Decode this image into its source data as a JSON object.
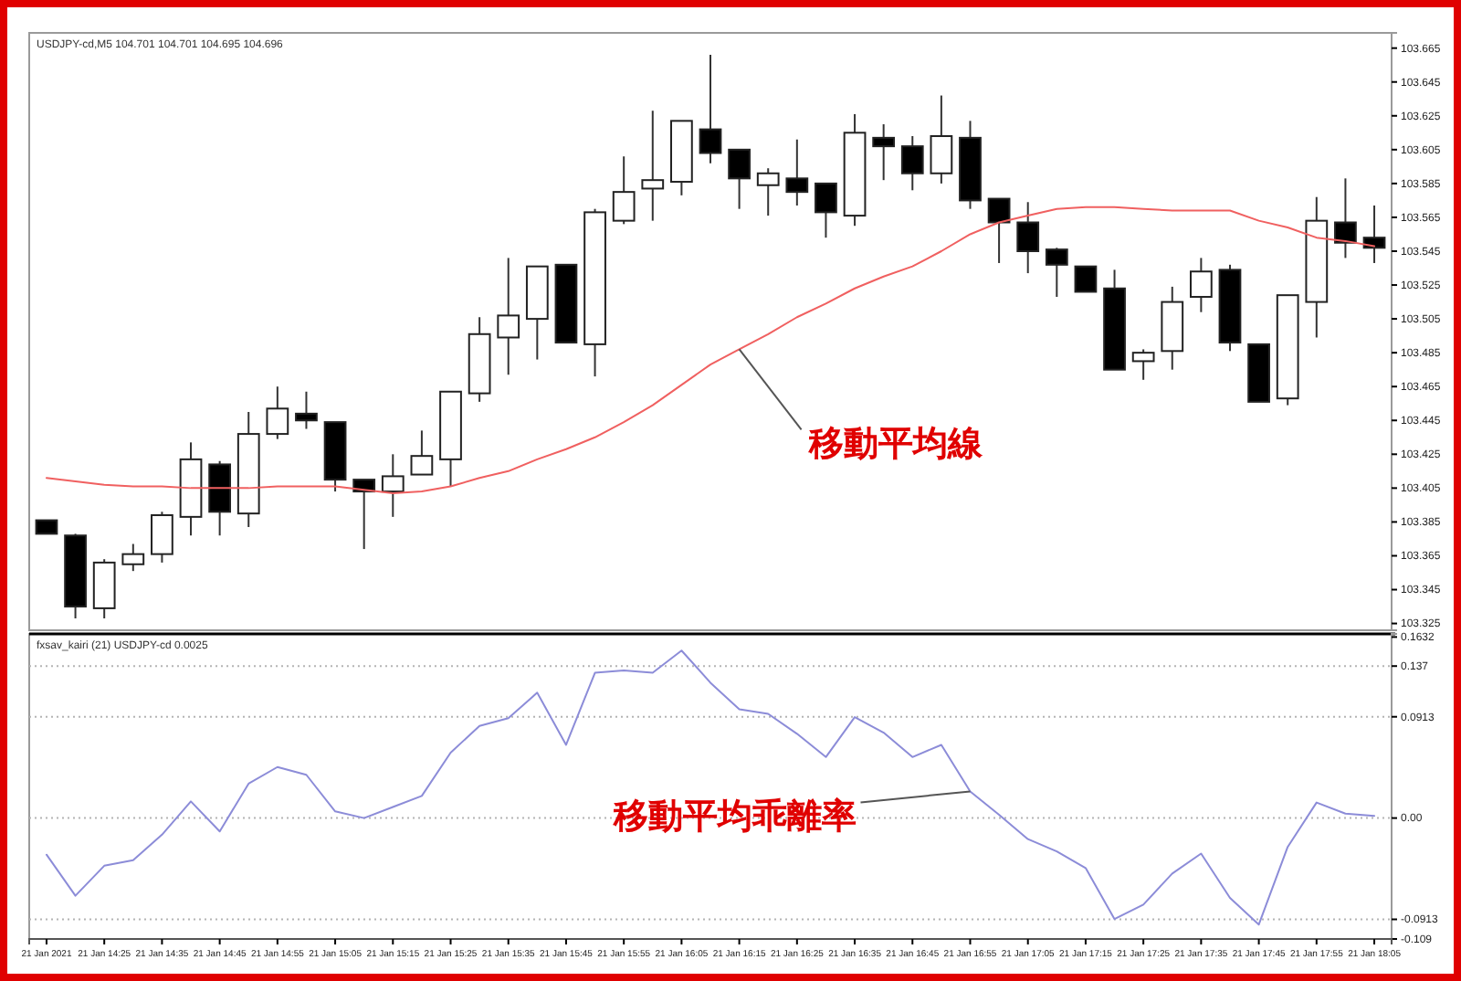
{
  "chart_data": [
    {
      "type": "candlestick",
      "title": "USDJPY-cd,M5  104.701 104.701 104.695 104.696",
      "x": [
        "2021-01-21T14:15",
        "2021-01-21T14:20",
        "2021-01-21T14:25",
        "2021-01-21T14:30",
        "2021-01-21T14:35",
        "2021-01-21T14:40",
        "2021-01-21T14:45",
        "2021-01-21T14:50",
        "2021-01-21T14:55",
        "2021-01-21T15:00",
        "2021-01-21T15:05",
        "2021-01-21T15:10",
        "2021-01-21T15:15",
        "2021-01-21T15:20",
        "2021-01-21T15:25",
        "2021-01-21T15:30",
        "2021-01-21T15:35",
        "2021-01-21T15:40",
        "2021-01-21T15:45",
        "2021-01-21T15:50",
        "2021-01-21T15:55",
        "2021-01-21T16:00",
        "2021-01-21T16:05",
        "2021-01-21T16:10",
        "2021-01-21T16:15",
        "2021-01-21T16:20",
        "2021-01-21T16:25",
        "2021-01-21T16:30",
        "2021-01-21T16:35",
        "2021-01-21T16:40",
        "2021-01-21T16:45",
        "2021-01-21T16:50",
        "2021-01-21T16:55",
        "2021-01-21T17:00",
        "2021-01-21T17:05",
        "2021-01-21T17:10",
        "2021-01-21T17:15",
        "2021-01-21T17:20",
        "2021-01-21T17:25",
        "2021-01-21T17:30",
        "2021-01-21T17:35",
        "2021-01-21T17:40",
        "2021-01-21T17:45",
        "2021-01-21T17:50",
        "2021-01-21T17:55",
        "2021-01-21T18:00",
        "2021-01-21T18:05"
      ],
      "ohlc": [
        [
          103.386,
          103.386,
          103.378,
          103.378
        ],
        [
          103.377,
          103.378,
          103.328,
          103.335
        ],
        [
          103.334,
          103.363,
          103.328,
          103.361
        ],
        [
          103.36,
          103.372,
          103.356,
          103.366
        ],
        [
          103.366,
          103.391,
          103.361,
          103.389
        ],
        [
          103.388,
          103.432,
          103.377,
          103.422
        ],
        [
          103.419,
          103.421,
          103.377,
          103.391
        ],
        [
          103.39,
          103.45,
          103.382,
          103.437
        ],
        [
          103.437,
          103.465,
          103.434,
          103.452
        ],
        [
          103.449,
          103.462,
          103.44,
          103.445
        ],
        [
          103.444,
          103.444,
          103.403,
          103.41
        ],
        [
          103.41,
          103.41,
          103.369,
          103.403
        ],
        [
          103.403,
          103.425,
          103.388,
          103.412
        ],
        [
          103.413,
          103.439,
          103.413,
          103.424
        ],
        [
          103.422,
          103.462,
          103.406,
          103.462
        ],
        [
          103.461,
          103.506,
          103.456,
          103.496
        ],
        [
          103.494,
          103.541,
          103.472,
          103.507
        ],
        [
          103.505,
          103.536,
          103.481,
          103.536
        ],
        [
          103.537,
          103.537,
          103.491,
          103.491
        ],
        [
          103.49,
          103.57,
          103.471,
          103.568
        ],
        [
          103.563,
          103.601,
          103.561,
          103.58
        ],
        [
          103.582,
          103.628,
          103.563,
          103.587
        ],
        [
          103.586,
          103.622,
          103.578,
          103.622
        ],
        [
          103.617,
          103.661,
          103.597,
          103.603
        ],
        [
          103.605,
          103.605,
          103.57,
          103.588
        ],
        [
          103.584,
          103.594,
          103.566,
          103.591
        ],
        [
          103.588,
          103.611,
          103.572,
          103.58
        ],
        [
          103.585,
          103.585,
          103.553,
          103.568
        ],
        [
          103.566,
          103.626,
          103.56,
          103.615
        ],
        [
          103.612,
          103.62,
          103.587,
          103.607
        ],
        [
          103.607,
          103.613,
          103.581,
          103.591
        ],
        [
          103.591,
          103.637,
          103.585,
          103.613
        ],
        [
          103.612,
          103.622,
          103.57,
          103.575
        ],
        [
          103.576,
          103.576,
          103.538,
          103.562
        ],
        [
          103.562,
          103.574,
          103.532,
          103.545
        ],
        [
          103.546,
          103.547,
          103.518,
          103.537
        ],
        [
          103.536,
          103.536,
          103.521,
          103.521
        ],
        [
          103.523,
          103.534,
          103.475,
          103.475
        ],
        [
          103.48,
          103.487,
          103.469,
          103.485
        ],
        [
          103.486,
          103.524,
          103.475,
          103.515
        ],
        [
          103.518,
          103.541,
          103.509,
          103.533
        ],
        [
          103.534,
          103.537,
          103.486,
          103.491
        ],
        [
          103.49,
          103.49,
          103.456,
          103.456
        ],
        [
          103.458,
          103.519,
          103.454,
          103.519
        ],
        [
          103.515,
          103.577,
          103.494,
          103.563
        ],
        [
          103.562,
          103.588,
          103.541,
          103.55
        ],
        [
          103.553,
          103.572,
          103.538,
          103.547
        ]
      ],
      "series": [
        {
          "type": "line",
          "color": "#f06060",
          "values": [
            103.411,
            103.409,
            103.407,
            103.406,
            103.406,
            103.405,
            103.405,
            103.405,
            103.406,
            103.406,
            103.406,
            103.404,
            103.402,
            103.403,
            103.406,
            103.411,
            103.415,
            103.422,
            103.428,
            103.435,
            103.444,
            103.454,
            103.466,
            103.478,
            103.487,
            103.496,
            103.506,
            103.514,
            103.523,
            103.53,
            103.536,
            103.545,
            103.555,
            103.562,
            103.566,
            103.57,
            103.571,
            103.571,
            103.57,
            103.569,
            103.569,
            103.569,
            103.563,
            103.559,
            103.553,
            103.551,
            103.548
          ]
        }
      ],
      "xlim": [
        "2021-01-21T14:12",
        "2021-01-21T18:08"
      ],
      "ylim": [
        103.321,
        103.674
      ],
      "yticks": [
        103.665,
        103.645,
        103.625,
        103.605,
        103.585,
        103.565,
        103.545,
        103.525,
        103.505,
        103.485,
        103.465,
        103.445,
        103.425,
        103.405,
        103.385,
        103.365,
        103.345,
        103.325
      ],
      "tick_labels": "y",
      "annotations": [
        {
          "text": "移動平均線",
          "x": "2021-01-21T16:15",
          "y": 103.487
        }
      ]
    },
    {
      "type": "line",
      "title": "fxsav_kairi (21) USDJPY-cd 0.0025",
      "x": [
        "2021-01-21T14:15",
        "2021-01-21T14:20",
        "2021-01-21T14:25",
        "2021-01-21T14:30",
        "2021-01-21T14:35",
        "2021-01-21T14:40",
        "2021-01-21T14:45",
        "2021-01-21T14:50",
        "2021-01-21T14:55",
        "2021-01-21T15:00",
        "2021-01-21T15:05",
        "2021-01-21T15:10",
        "2021-01-21T15:15",
        "2021-01-21T15:20",
        "2021-01-21T15:25",
        "2021-01-21T15:30",
        "2021-01-21T15:35",
        "2021-01-21T15:40",
        "2021-01-21T15:45",
        "2021-01-21T15:50",
        "2021-01-21T15:55",
        "2021-01-21T16:00",
        "2021-01-21T16:05",
        "2021-01-21T16:10",
        "2021-01-21T16:15",
        "2021-01-21T16:20",
        "2021-01-21T16:25",
        "2021-01-21T16:30",
        "2021-01-21T16:35",
        "2021-01-21T16:40",
        "2021-01-21T16:45",
        "2021-01-21T16:50",
        "2021-01-21T16:55",
        "2021-01-21T17:00",
        "2021-01-21T17:05",
        "2021-01-21T17:10",
        "2021-01-21T17:15",
        "2021-01-21T17:20",
        "2021-01-21T17:25",
        "2021-01-21T17:30",
        "2021-01-21T17:35",
        "2021-01-21T17:40",
        "2021-01-21T17:45",
        "2021-01-21T17:50",
        "2021-01-21T17:55",
        "2021-01-21T18:00",
        "2021-01-21T18:05"
      ],
      "series": [
        {
          "color": "#8c8cd8",
          "values": [
            -0.033,
            -0.07,
            -0.043,
            -0.038,
            -0.015,
            0.015,
            -0.012,
            0.031,
            0.046,
            0.039,
            0.006,
            0.0,
            0.01,
            0.02,
            0.059,
            0.083,
            0.09,
            0.113,
            0.066,
            0.131,
            0.133,
            0.131,
            0.151,
            0.122,
            0.098,
            0.094,
            0.076,
            0.055,
            0.091,
            0.077,
            0.055,
            0.066,
            0.024,
            0.003,
            -0.019,
            -0.03,
            -0.045,
            -0.091,
            -0.078,
            -0.05,
            -0.032,
            -0.072,
            -0.096,
            -0.026,
            0.014,
            0.004,
            0.002
          ]
        }
      ],
      "xlim": [
        "2021-01-21T14:12",
        "2021-01-21T18:08"
      ],
      "xticks": [
        {
          "value": "2021-01-21T14:15",
          "label": "21 Jan 2021"
        },
        {
          "value": "2021-01-21T14:25",
          "label": "21 Jan 14:25"
        },
        {
          "value": "2021-01-21T14:35",
          "label": "21 Jan 14:35"
        },
        {
          "value": "2021-01-21T14:45",
          "label": "21 Jan 14:45"
        },
        {
          "value": "2021-01-21T14:55",
          "label": "21 Jan 14:55"
        },
        {
          "value": "2021-01-21T15:05",
          "label": "21 Jan 15:05"
        },
        {
          "value": "2021-01-21T15:15",
          "label": "21 Jan 15:15"
        },
        {
          "value": "2021-01-21T15:25",
          "label": "21 Jan 15:25"
        },
        {
          "value": "2021-01-21T15:35",
          "label": "21 Jan 15:35"
        },
        {
          "value": "2021-01-21T15:45",
          "label": "21 Jan 15:45"
        },
        {
          "value": "2021-01-21T15:55",
          "label": "21 Jan 15:55"
        },
        {
          "value": "2021-01-21T16:05",
          "label": "21 Jan 16:05"
        },
        {
          "value": "2021-01-21T16:15",
          "label": "21 Jan 16:15"
        },
        {
          "value": "2021-01-21T16:25",
          "label": "21 Jan 16:25"
        },
        {
          "value": "2021-01-21T16:35",
          "label": "21 Jan 16:35"
        },
        {
          "value": "2021-01-21T16:45",
          "label": "21 Jan 16:45"
        },
        {
          "value": "2021-01-21T16:55",
          "label": "21 Jan 16:55"
        },
        {
          "value": "2021-01-21T17:05",
          "label": "21 Jan 17:05"
        },
        {
          "value": "2021-01-21T17:15",
          "label": "21 Jan 17:15"
        },
        {
          "value": "2021-01-21T17:25",
          "label": "21 Jan 17:25"
        },
        {
          "value": "2021-01-21T17:35",
          "label": "21 Jan 17:35"
        },
        {
          "value": "2021-01-21T17:45",
          "label": "21 Jan 17:45"
        },
        {
          "value": "2021-01-21T17:55",
          "label": "21 Jan 17:55"
        },
        {
          "value": "2021-01-21T18:05",
          "label": "21 Jan 18:05"
        }
      ],
      "ylim": [
        -0.109,
        0.166
      ],
      "yticks": [
        0.1632,
        0.137,
        0.0913,
        {
          "value": 0,
          "label": "0.00"
        },
        -0.0913,
        -0.109
      ],
      "ref_lines": [
        {
          "axis": "y",
          "value": 0.137,
          "color": "#b4b4b4",
          "line_style": "dotted"
        },
        {
          "axis": "y",
          "value": 0.0913,
          "color": "#b4b4b4",
          "line_style": "dotted"
        },
        {
          "axis": "y",
          "value": 0,
          "color": "#b4b4b4",
          "line_style": "dotted"
        },
        {
          "axis": "y",
          "value": -0.0913,
          "color": "#b4b4b4",
          "line_style": "dotted"
        }
      ],
      "annotations": [
        {
          "text": "移動平均乖離率",
          "x": "2021-01-21T16:55",
          "y": 0.024
        }
      ]
    }
  ]
}
